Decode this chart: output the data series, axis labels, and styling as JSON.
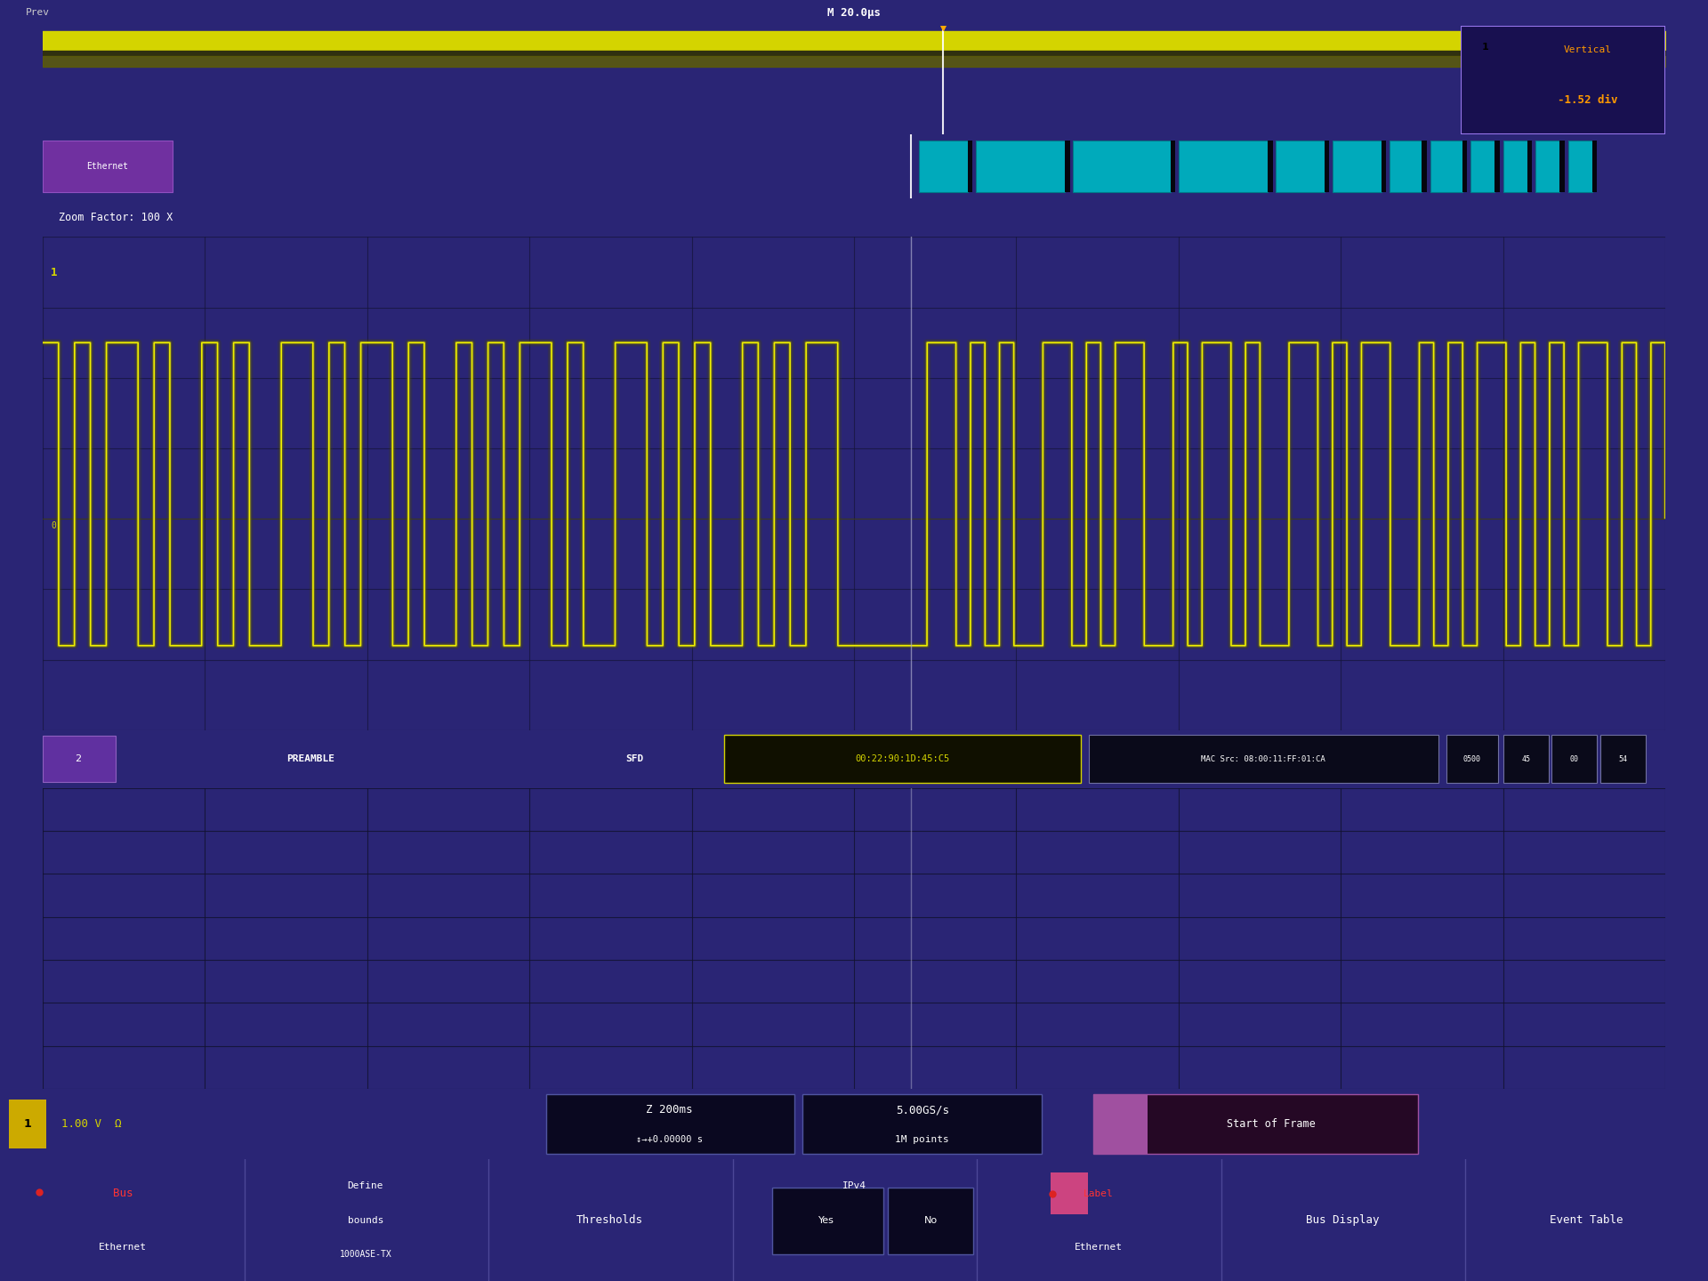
{
  "fig_bg": "#2a2575",
  "scope_frame_bg": "#2a2575",
  "screen_dark": "#05050e",
  "screen_mid": "#080818",
  "waveform_yellow": "#d4d400",
  "waveform_bright": "#f0f000",
  "waveform_glow": "#606000",
  "purple_ui": "#4a3a8a",
  "purple_bright": "#6a55cc",
  "cyan_decode": "#00aabb",
  "cyan_dark": "#007788",
  "header_bg": "#3a35a0",
  "zoom_bar_bg": "#3a35a0",
  "status_bg": "#2a2070",
  "button_bg": "#252060",
  "title_text": "M 20.0μs",
  "prev_text": "Prev",
  "zoom_text": "Zoom Factor: 100 X",
  "vertical_text": "Vertical",
  "vertical_val": "-1.52 div",
  "voltage_label": "1.00 V  Ω",
  "time_label": "Z 200ms",
  "time_offset": "↕→+0.00000 s",
  "sample_rate": "5.00GS/s",
  "sample_points": "1M points",
  "trigger_label": "Start of Frame",
  "mac_hex": "00:22:90:1D:45:C5",
  "mac_src": "MAC Src: 08:00:11:FF:01:CA",
  "extra_fields": [
    "0500",
    "45",
    "00",
    "54"
  ]
}
